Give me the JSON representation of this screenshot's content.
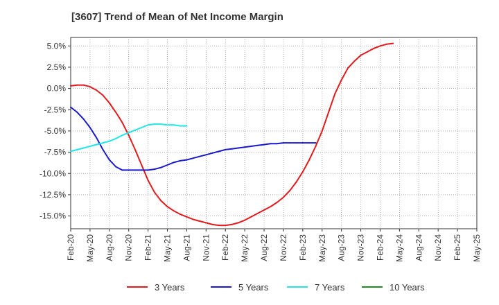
{
  "chart_data": {
    "type": "line",
    "title": "[3607]  Trend of Mean of Net Income Margin",
    "xlabel": "",
    "ylabel": "",
    "x_ticks": [
      "Feb-20",
      "May-20",
      "Aug-20",
      "Nov-20",
      "Feb-21",
      "May-21",
      "Aug-21",
      "Nov-21",
      "Feb-22",
      "May-22",
      "Aug-22",
      "Nov-22",
      "Feb-23",
      "May-23",
      "Aug-23",
      "Nov-23",
      "Feb-24",
      "May-24",
      "Aug-24",
      "Nov-24",
      "Feb-25",
      "May-25"
    ],
    "y_ticks": [
      "5.0%",
      "2.5%",
      "0.0%",
      "-2.5%",
      "-5.0%",
      "-7.5%",
      "-10.0%",
      "-12.5%",
      "-15.0%"
    ],
    "y_tick_values": [
      5,
      2.5,
      0,
      -2.5,
      -5,
      -7.5,
      -10,
      -12.5,
      -15
    ],
    "ylim": [
      -16.5,
      6
    ],
    "grid": true,
    "legend_position": "bottom",
    "series": [
      {
        "name": "3 Years",
        "color": "#e31a1c",
        "points": [
          [
            "Feb-20",
            0.3
          ],
          [
            "Mar-20",
            0.4
          ],
          [
            "Apr-20",
            0.4
          ],
          [
            "May-20",
            0.2
          ],
          [
            "Jun-20",
            -0.2
          ],
          [
            "Jul-20",
            -0.8
          ],
          [
            "Aug-20",
            -1.7
          ],
          [
            "Sep-20",
            -2.8
          ],
          [
            "Oct-20",
            -4.0
          ],
          [
            "Nov-20",
            -5.5
          ],
          [
            "Dec-20",
            -7.2
          ],
          [
            "Jan-21",
            -9.0
          ],
          [
            "Feb-21",
            -10.8
          ],
          [
            "Mar-21",
            -12.2
          ],
          [
            "Apr-21",
            -13.2
          ],
          [
            "May-21",
            -13.9
          ],
          [
            "Jun-21",
            -14.4
          ],
          [
            "Jul-21",
            -14.8
          ],
          [
            "Aug-21",
            -15.1
          ],
          [
            "Sep-21",
            -15.4
          ],
          [
            "Oct-21",
            -15.6
          ],
          [
            "Nov-21",
            -15.8
          ],
          [
            "Dec-21",
            -16.0
          ],
          [
            "Jan-22",
            -16.1
          ],
          [
            "Feb-22",
            -16.1
          ],
          [
            "Mar-22",
            -16.0
          ],
          [
            "Apr-22",
            -15.8
          ],
          [
            "May-22",
            -15.5
          ],
          [
            "Jun-22",
            -15.1
          ],
          [
            "Jul-22",
            -14.7
          ],
          [
            "Aug-22",
            -14.3
          ],
          [
            "Sep-22",
            -13.9
          ],
          [
            "Oct-22",
            -13.4
          ],
          [
            "Nov-22",
            -12.8
          ],
          [
            "Dec-22",
            -12.0
          ],
          [
            "Jan-23",
            -11.0
          ],
          [
            "Feb-23",
            -9.8
          ],
          [
            "Mar-23",
            -8.4
          ],
          [
            "Apr-23",
            -6.8
          ],
          [
            "May-23",
            -5.0
          ],
          [
            "Jun-23",
            -2.8
          ],
          [
            "Jul-23",
            -0.6
          ],
          [
            "Aug-23",
            1.0
          ],
          [
            "Sep-23",
            2.4
          ],
          [
            "Oct-23",
            3.2
          ],
          [
            "Nov-23",
            3.9
          ],
          [
            "Dec-23",
            4.3
          ],
          [
            "Jan-24",
            4.7
          ],
          [
            "Feb-24",
            5.0
          ],
          [
            "Mar-24",
            5.2
          ],
          [
            "Apr-24",
            5.3
          ]
        ]
      },
      {
        "name": "5 Years",
        "color": "#1a1acd",
        "points": [
          [
            "Feb-20",
            -2.2
          ],
          [
            "Mar-20",
            -2.8
          ],
          [
            "Apr-20",
            -3.6
          ],
          [
            "May-20",
            -4.6
          ],
          [
            "Jun-20",
            -5.8
          ],
          [
            "Jul-20",
            -7.2
          ],
          [
            "Aug-20",
            -8.4
          ],
          [
            "Sep-20",
            -9.2
          ],
          [
            "Oct-20",
            -9.6
          ],
          [
            "Nov-20",
            -9.6
          ],
          [
            "Dec-20",
            -9.6
          ],
          [
            "Jan-21",
            -9.6
          ],
          [
            "Feb-21",
            -9.6
          ],
          [
            "Mar-21",
            -9.5
          ],
          [
            "Apr-21",
            -9.3
          ],
          [
            "May-21",
            -9.0
          ],
          [
            "Jun-21",
            -8.7
          ],
          [
            "Jul-21",
            -8.5
          ],
          [
            "Aug-21",
            -8.4
          ],
          [
            "Sep-21",
            -8.2
          ],
          [
            "Oct-21",
            -8.0
          ],
          [
            "Nov-21",
            -7.8
          ],
          [
            "Dec-21",
            -7.6
          ],
          [
            "Jan-22",
            -7.4
          ],
          [
            "Feb-22",
            -7.2
          ],
          [
            "Mar-22",
            -7.1
          ],
          [
            "Apr-22",
            -7.0
          ],
          [
            "May-22",
            -6.9
          ],
          [
            "Jun-22",
            -6.8
          ],
          [
            "Jul-22",
            -6.7
          ],
          [
            "Aug-22",
            -6.6
          ],
          [
            "Sep-22",
            -6.5
          ],
          [
            "Oct-22",
            -6.5
          ],
          [
            "Nov-22",
            -6.4
          ],
          [
            "Dec-22",
            -6.4
          ],
          [
            "Jan-23",
            -6.4
          ],
          [
            "Feb-23",
            -6.4
          ],
          [
            "Mar-23",
            -6.4
          ],
          [
            "Apr-23",
            -6.4
          ]
        ]
      },
      {
        "name": "7 Years",
        "color": "#22e5e5",
        "points": [
          [
            "Feb-20",
            -7.4
          ],
          [
            "Mar-20",
            -7.2
          ],
          [
            "Apr-20",
            -7.0
          ],
          [
            "May-20",
            -6.8
          ],
          [
            "Jun-20",
            -6.6
          ],
          [
            "Jul-20",
            -6.4
          ],
          [
            "Aug-20",
            -6.2
          ],
          [
            "Sep-20",
            -5.9
          ],
          [
            "Oct-20",
            -5.5
          ],
          [
            "Nov-20",
            -5.2
          ],
          [
            "Dec-20",
            -4.9
          ],
          [
            "Jan-21",
            -4.6
          ],
          [
            "Feb-21",
            -4.3
          ],
          [
            "Mar-21",
            -4.2
          ],
          [
            "Apr-21",
            -4.2
          ],
          [
            "May-21",
            -4.3
          ],
          [
            "Jun-21",
            -4.3
          ],
          [
            "Jul-21",
            -4.4
          ],
          [
            "Aug-21",
            -4.4
          ]
        ]
      },
      {
        "name": "10 Years",
        "color": "#1e8c1e",
        "points": []
      }
    ]
  }
}
